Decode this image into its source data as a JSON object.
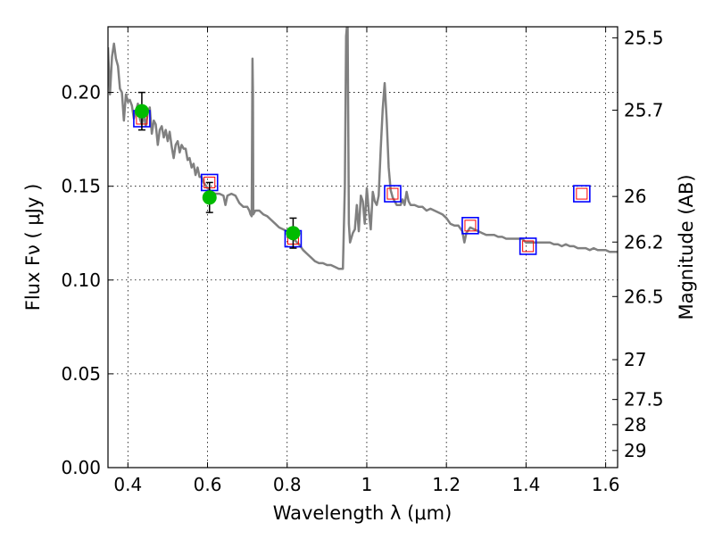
{
  "chart_data": {
    "type": "line",
    "xlabel": "Wavelength  λ (μm)",
    "ylabel": "Flux  Fν  ( μJy )",
    "y2label": "Magnitude (AB)",
    "xlim": [
      0.35,
      1.63
    ],
    "ylim": [
      0.0,
      0.235
    ],
    "grid": true,
    "x_ticks": [
      0.4,
      0.6,
      0.8,
      1.0,
      1.2,
      1.4,
      1.6
    ],
    "x_tick_labels": [
      "0.4",
      "0.6",
      "0.8",
      "1",
      "1.2",
      "1.4",
      "1.6"
    ],
    "y_ticks": [
      0.0,
      0.05,
      0.1,
      0.15,
      0.2
    ],
    "y_tick_labels": [
      "0.00",
      "0.05",
      "0.10",
      "0.15",
      "0.20"
    ],
    "mag_ticks": [
      25.5,
      25.7,
      26,
      26.2,
      26.5,
      27,
      27.5,
      28,
      29
    ],
    "mag_tick_labels": [
      "25.5",
      "25.7",
      "26",
      "26.2",
      "26.5",
      "27",
      "27.5",
      "28",
      "29"
    ],
    "colors": {
      "model": "#808080",
      "observed": "#00bb00",
      "errorbar": "#000000",
      "model_box": "#0000ff",
      "model_box_inner": "#ff0000"
    },
    "series": [
      {
        "kind": "model-spectrum",
        "points": [
          [
            0.35,
            0.224
          ],
          [
            0.355,
            0.199
          ],
          [
            0.36,
            0.219
          ],
          [
            0.365,
            0.226
          ],
          [
            0.37,
            0.218
          ],
          [
            0.375,
            0.214
          ],
          [
            0.38,
            0.202
          ],
          [
            0.385,
            0.2
          ],
          [
            0.39,
            0.185
          ],
          [
            0.395,
            0.199
          ],
          [
            0.4,
            0.195
          ],
          [
            0.405,
            0.196
          ],
          [
            0.41,
            0.193
          ],
          [
            0.415,
            0.186
          ],
          [
            0.42,
            0.19
          ],
          [
            0.425,
            0.194
          ],
          [
            0.43,
            0.186
          ],
          [
            0.435,
            0.183
          ],
          [
            0.44,
            0.188
          ],
          [
            0.445,
            0.182
          ],
          [
            0.45,
            0.189
          ],
          [
            0.455,
            0.192
          ],
          [
            0.46,
            0.178
          ],
          [
            0.465,
            0.185
          ],
          [
            0.47,
            0.183
          ],
          [
            0.475,
            0.172
          ],
          [
            0.48,
            0.18
          ],
          [
            0.485,
            0.182
          ],
          [
            0.49,
            0.176
          ],
          [
            0.495,
            0.18
          ],
          [
            0.5,
            0.174
          ],
          [
            0.505,
            0.179
          ],
          [
            0.51,
            0.171
          ],
          [
            0.515,
            0.165
          ],
          [
            0.52,
            0.172
          ],
          [
            0.525,
            0.174
          ],
          [
            0.53,
            0.168
          ],
          [
            0.535,
            0.172
          ],
          [
            0.54,
            0.17
          ],
          [
            0.545,
            0.17
          ],
          [
            0.55,
            0.164
          ],
          [
            0.555,
            0.165
          ],
          [
            0.56,
            0.16
          ],
          [
            0.565,
            0.162
          ],
          [
            0.57,
            0.156
          ],
          [
            0.575,
            0.16
          ],
          [
            0.58,
            0.155
          ],
          [
            0.585,
            0.155
          ],
          [
            0.59,
            0.152
          ],
          [
            0.6,
            0.149
          ],
          [
            0.61,
            0.147
          ],
          [
            0.62,
            0.146
          ],
          [
            0.63,
            0.146
          ],
          [
            0.64,
            0.145
          ],
          [
            0.645,
            0.14
          ],
          [
            0.65,
            0.145
          ],
          [
            0.66,
            0.146
          ],
          [
            0.67,
            0.145
          ],
          [
            0.68,
            0.141
          ],
          [
            0.69,
            0.139
          ],
          [
            0.7,
            0.139
          ],
          [
            0.705,
            0.137
          ],
          [
            0.708,
            0.135
          ],
          [
            0.711,
            0.134
          ],
          [
            0.712,
            0.18
          ],
          [
            0.713,
            0.218
          ],
          [
            0.714,
            0.2
          ],
          [
            0.715,
            0.135
          ],
          [
            0.72,
            0.137
          ],
          [
            0.73,
            0.137
          ],
          [
            0.74,
            0.135
          ],
          [
            0.75,
            0.134
          ],
          [
            0.76,
            0.132
          ],
          [
            0.77,
            0.13
          ],
          [
            0.78,
            0.128
          ],
          [
            0.79,
            0.127
          ],
          [
            0.8,
            0.126
          ],
          [
            0.81,
            0.123
          ],
          [
            0.82,
            0.121
          ],
          [
            0.83,
            0.119
          ],
          [
            0.84,
            0.116
          ],
          [
            0.85,
            0.114
          ],
          [
            0.86,
            0.112
          ],
          [
            0.87,
            0.11
          ],
          [
            0.88,
            0.109
          ],
          [
            0.89,
            0.109
          ],
          [
            0.9,
            0.108
          ],
          [
            0.91,
            0.108
          ],
          [
            0.92,
            0.107
          ],
          [
            0.93,
            0.106
          ],
          [
            0.94,
            0.106
          ],
          [
            0.945,
            0.15
          ],
          [
            0.948,
            0.23
          ],
          [
            0.95,
            0.235
          ],
          [
            0.952,
            0.235
          ],
          [
            0.955,
            0.13
          ],
          [
            0.958,
            0.12
          ],
          [
            0.965,
            0.125
          ],
          [
            0.97,
            0.127
          ],
          [
            0.975,
            0.14
          ],
          [
            0.98,
            0.126
          ],
          [
            0.985,
            0.145
          ],
          [
            0.99,
            0.142
          ],
          [
            0.995,
            0.13
          ],
          [
            1.0,
            0.149
          ],
          [
            1.005,
            0.137
          ],
          [
            1.01,
            0.127
          ],
          [
            1.015,
            0.147
          ],
          [
            1.02,
            0.142
          ],
          [
            1.025,
            0.14
          ],
          [
            1.03,
            0.145
          ],
          [
            1.035,
            0.17
          ],
          [
            1.04,
            0.191
          ],
          [
            1.045,
            0.205
          ],
          [
            1.05,
            0.185
          ],
          [
            1.055,
            0.16
          ],
          [
            1.06,
            0.148
          ],
          [
            1.065,
            0.144
          ],
          [
            1.07,
            0.142
          ],
          [
            1.075,
            0.14
          ],
          [
            1.08,
            0.14
          ],
          [
            1.085,
            0.14
          ],
          [
            1.09,
            0.143
          ],
          [
            1.095,
            0.14
          ],
          [
            1.1,
            0.147
          ],
          [
            1.105,
            0.142
          ],
          [
            1.11,
            0.14
          ],
          [
            1.12,
            0.14
          ],
          [
            1.13,
            0.139
          ],
          [
            1.14,
            0.139
          ],
          [
            1.15,
            0.137
          ],
          [
            1.16,
            0.138
          ],
          [
            1.17,
            0.137
          ],
          [
            1.18,
            0.136
          ],
          [
            1.19,
            0.135
          ],
          [
            1.2,
            0.133
          ],
          [
            1.21,
            0.13
          ],
          [
            1.22,
            0.129
          ],
          [
            1.23,
            0.129
          ],
          [
            1.24,
            0.126
          ],
          [
            1.245,
            0.12
          ],
          [
            1.25,
            0.125
          ],
          [
            1.26,
            0.128
          ],
          [
            1.27,
            0.127
          ],
          [
            1.28,
            0.126
          ],
          [
            1.29,
            0.125
          ],
          [
            1.3,
            0.124
          ],
          [
            1.31,
            0.124
          ],
          [
            1.32,
            0.124
          ],
          [
            1.33,
            0.123
          ],
          [
            1.34,
            0.123
          ],
          [
            1.35,
            0.122
          ],
          [
            1.36,
            0.122
          ],
          [
            1.37,
            0.122
          ],
          [
            1.38,
            0.122
          ],
          [
            1.39,
            0.122
          ],
          [
            1.4,
            0.12
          ],
          [
            1.41,
            0.12
          ],
          [
            1.42,
            0.12
          ],
          [
            1.43,
            0.12
          ],
          [
            1.44,
            0.12
          ],
          [
            1.45,
            0.12
          ],
          [
            1.46,
            0.12
          ],
          [
            1.47,
            0.119
          ],
          [
            1.48,
            0.119
          ],
          [
            1.49,
            0.118
          ],
          [
            1.5,
            0.119
          ],
          [
            1.51,
            0.118
          ],
          [
            1.52,
            0.118
          ],
          [
            1.53,
            0.117
          ],
          [
            1.54,
            0.117
          ],
          [
            1.55,
            0.117
          ],
          [
            1.56,
            0.116
          ],
          [
            1.57,
            0.117
          ],
          [
            1.58,
            0.116
          ],
          [
            1.59,
            0.116
          ],
          [
            1.6,
            0.116
          ],
          [
            1.61,
            0.115
          ],
          [
            1.62,
            0.115
          ],
          [
            1.63,
            0.115
          ]
        ]
      },
      {
        "kind": "observed-photometry",
        "x": [
          0.435,
          0.605,
          0.815
        ],
        "y": [
          0.19,
          0.144,
          0.125
        ],
        "err": [
          0.01,
          0.008,
          0.008
        ]
      },
      {
        "kind": "model-photometry",
        "x": [
          0.435,
          0.605,
          0.815,
          1.065,
          1.26,
          1.405,
          1.54
        ],
        "y": [
          0.186,
          0.152,
          0.122,
          0.146,
          0.129,
          0.118,
          0.146
        ]
      }
    ]
  }
}
